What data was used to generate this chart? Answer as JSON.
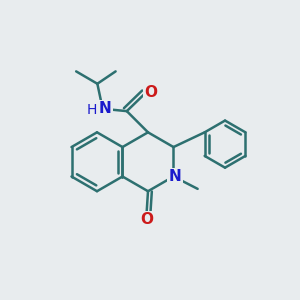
{
  "bg_color": "#e8ecee",
  "bond_color": "#2d7070",
  "bond_width": 1.8,
  "n_color": "#1a1acc",
  "o_color": "#cc1a1a",
  "figsize": [
    3.0,
    3.0
  ],
  "dpi": 100,
  "xlim": [
    0,
    10
  ],
  "ylim": [
    0,
    10
  ]
}
